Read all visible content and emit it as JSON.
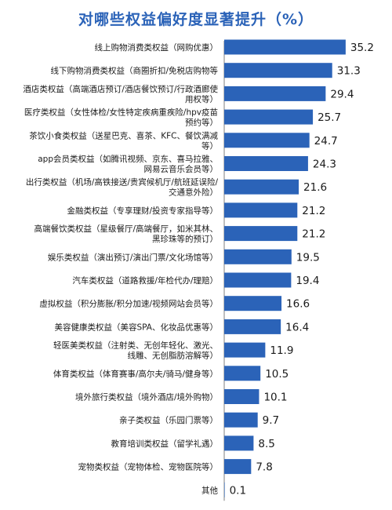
{
  "chart_data": {
    "type": "bar",
    "orientation": "horizontal",
    "title": "对哪些权益偏好度显著提升（%）",
    "xlim": [
      0,
      40
    ],
    "bar_color": "#2b63b8",
    "title_color": "#2b63b8",
    "axis_color": "#7f7f7f",
    "categories": [
      [
        "线上购物消费类权益（网购优惠）"
      ],
      [
        "线下购物消费类权益（商圈折扣/免税店购物等"
      ],
      [
        "酒店类权益（高端酒店预订/酒店餐饮预订/行政酒廊使",
        "用权等）"
      ],
      [
        "医疗类权益（女性体检/女性特定疾病重疾险/hpv疫苗",
        "预约等）"
      ],
      [
        "茶饮小食类权益（送星巴克、喜茶、KFC、餐饮满减",
        "等）"
      ],
      [
        "app会员类权益（如腾讯视频、京东、喜马拉雅、",
        "网易云音乐会员等）"
      ],
      [
        "出行类权益（机场/高铁接送/贵宾候机厅/航班延误险/",
        "交通意外险）"
      ],
      [
        "金融类权益（专享理财/投资专家指导等）"
      ],
      [
        "高端餐饮类权益（星级餐厅/高端餐厅，如米其林、",
        "黑珍珠等的预订）"
      ],
      [
        "娱乐类权益（演出预订/演出门票/文化场馆等）"
      ],
      [
        "汽车类权益（道路救援/年检代办/理赔）"
      ],
      [
        "虚拟权益（积分膨胀/积分加速/视频网站会员等）"
      ],
      [
        "美容健康类权益（美容SPA、化妆品优惠等）"
      ],
      [
        "轻医美类权益（注射类、无创年轻化、激光、",
        "线雕、无创脂肪溶解等）"
      ],
      [
        "体育类权益（体育赛事/高尔夫/骑马/健身等）"
      ],
      [
        "境外旅行类权益（境外酒店/境外购物）"
      ],
      [
        "亲子类权益（乐园门票等）"
      ],
      [
        "教育培训类权益（留学礼遇）"
      ],
      [
        "宠物类权益（宠物体检、宠物医院等）"
      ],
      [
        "其他"
      ]
    ],
    "values": [
      35.2,
      31.3,
      29.4,
      25.7,
      24.7,
      24.3,
      21.6,
      21.2,
      21.2,
      19.5,
      19.4,
      16.6,
      16.4,
      11.9,
      10.5,
      10.1,
      9.7,
      8.5,
      7.8,
      0.1
    ],
    "value_labels": [
      "35.2",
      "31.3",
      "29.4",
      "25.7",
      "24.7",
      "24.3",
      "21.6",
      "21.2",
      "21.2",
      "19.5",
      "19.4",
      "16.6",
      "16.4",
      "11.9",
      "10.5",
      "10.1",
      "9.7",
      "8.5",
      "7.8",
      "0.1"
    ]
  }
}
